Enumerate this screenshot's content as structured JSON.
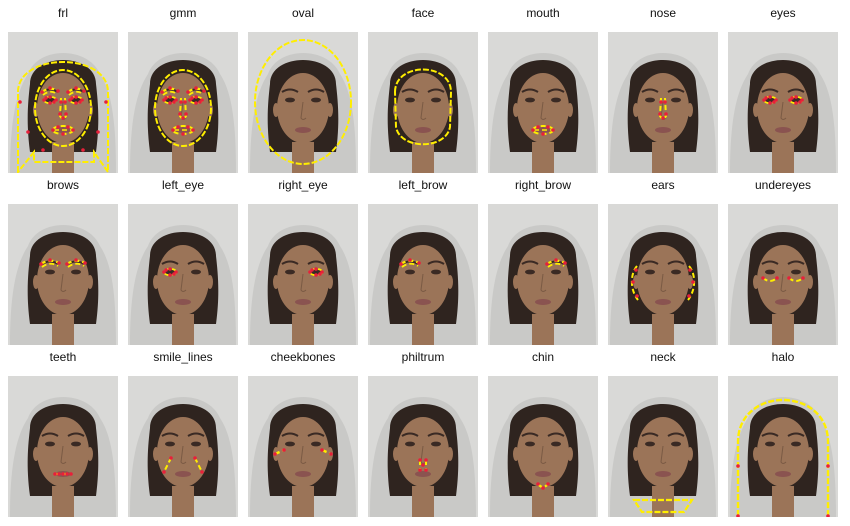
{
  "figure": {
    "panels": [
      {
        "label": "frl",
        "overlay": "frl"
      },
      {
        "label": "gmm",
        "overlay": "gmm"
      },
      {
        "label": "oval",
        "overlay": "oval"
      },
      {
        "label": "face",
        "overlay": "face"
      },
      {
        "label": "mouth",
        "overlay": "mouth"
      },
      {
        "label": "nose",
        "overlay": "nose"
      },
      {
        "label": "eyes",
        "overlay": "eyes"
      },
      {
        "label": "brows",
        "overlay": "brows"
      },
      {
        "label": "left_eye",
        "overlay": "left_eye"
      },
      {
        "label": "right_eye",
        "overlay": "right_eye"
      },
      {
        "label": "left_brow",
        "overlay": "left_brow"
      },
      {
        "label": "right_brow",
        "overlay": "right_brow"
      },
      {
        "label": "ears",
        "overlay": "ears"
      },
      {
        "label": "undereyes",
        "overlay": "undereyes"
      },
      {
        "label": "teeth",
        "overlay": "teeth"
      },
      {
        "label": "smile_lines",
        "overlay": "smile_lines"
      },
      {
        "label": "cheekbones",
        "overlay": "cheekbones"
      },
      {
        "label": "philtrum",
        "overlay": "philtrum"
      },
      {
        "label": "chin",
        "overlay": "chin"
      },
      {
        "label": "neck",
        "overlay": "neck"
      },
      {
        "label": "halo",
        "overlay": "halo"
      }
    ]
  },
  "colors": {
    "line": "#ffee00",
    "point": "#e8203a",
    "background": "#d9d9d7",
    "hair": "#2f241f",
    "skin": "#9b7458",
    "feature": "#3a2a24",
    "lips": "#8a5350"
  }
}
